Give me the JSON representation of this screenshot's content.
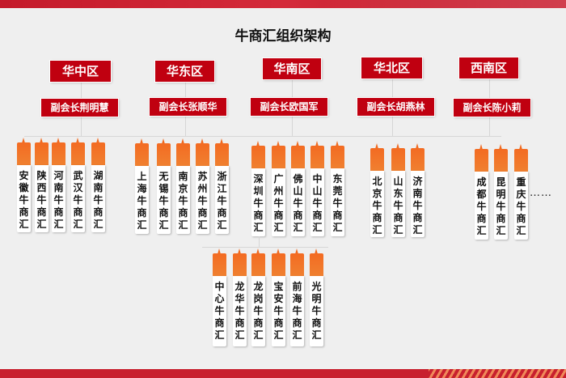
{
  "title": "牛商汇组织架构",
  "regions": [
    {
      "name": "华中区",
      "vp": "副会长荆明慧",
      "branches": [
        "安徽牛商汇",
        "陕西牛商汇",
        "河南牛商汇",
        "武汉牛商汇",
        "湖南牛商汇"
      ]
    },
    {
      "name": "华东区",
      "vp": "副会长张顺华",
      "branches": [
        "上海牛商汇",
        "无锡牛商汇",
        "南京牛商汇",
        "苏州牛商汇",
        "浙江牛商汇"
      ]
    },
    {
      "name": "华南区",
      "vp": "副会长欧国军",
      "branches": [
        "深圳牛商汇",
        "广州牛商汇",
        "佛山牛商汇",
        "中山牛商汇",
        "东莞牛商汇"
      ],
      "sub_branches": [
        "中心牛商汇",
        "龙华牛商汇",
        "龙岗牛商汇",
        "宝安牛商汇",
        "前海牛商汇",
        "光明牛商汇"
      ]
    },
    {
      "name": "华北区",
      "vp": "副会长胡燕林",
      "branches": [
        "北京牛商汇",
        "山东牛商汇",
        "济南牛商汇"
      ]
    },
    {
      "name": "西南区",
      "vp": "副会长陈小莉",
      "branches": [
        "成都牛商汇",
        "昆明牛商汇",
        "重庆牛商汇"
      ]
    }
  ],
  "more": "……",
  "colors": {
    "region": "#c00010",
    "card_head": "#f36b22",
    "banner": "#c8202e"
  }
}
